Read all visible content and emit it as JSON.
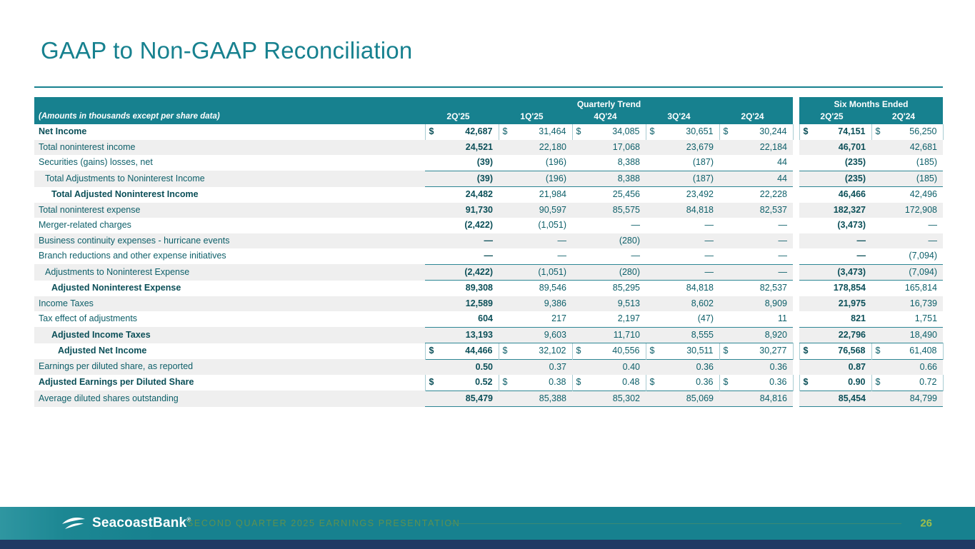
{
  "title": "GAAP to Non-GAAP Reconciliation",
  "colors": {
    "teal_header": "#17818F",
    "body_text": "#0D5F69",
    "bold_text": "#0B4F58",
    "stripe": "#EFEFEF",
    "footer_bar": "#17818F",
    "bottom_strip": "#203A64",
    "page_number": "#9DBE4C"
  },
  "table": {
    "row_label_header": "(Amounts in thousands except per share data)",
    "group_headers": [
      {
        "label": "Quarterly Trend",
        "span": 5
      },
      {
        "label": "Six Months Ended",
        "span": 2
      }
    ],
    "columns": [
      "2Q'25",
      "1Q'25",
      "4Q'24",
      "3Q'24",
      "2Q'24",
      "2Q'25",
      "2Q'24"
    ],
    "rows": [
      {
        "label": "Net Income",
        "indent": 0,
        "bold_label": true,
        "dollar": true,
        "topline": false,
        "bottomline": false,
        "values": [
          "42,687",
          "31,464",
          "34,085",
          "30,651",
          "30,244",
          "74,151",
          "56,250"
        ]
      },
      {
        "label": "Total noninterest income",
        "indent": 0,
        "bold_label": false,
        "dollar": false,
        "topline": false,
        "bottomline": false,
        "values": [
          "24,521",
          "22,180",
          "17,068",
          "23,679",
          "22,184",
          "46,701",
          "42,681"
        ]
      },
      {
        "label": "Securities (gains) losses, net",
        "indent": 0,
        "bold_label": false,
        "dollar": false,
        "topline": false,
        "bottomline": false,
        "values": [
          "(39)",
          "(196)",
          "8,388",
          "(187)",
          "44",
          "(235)",
          "(185)"
        ]
      },
      {
        "label": "Total Adjustments to Noninterest Income",
        "indent": 1,
        "bold_label": false,
        "dollar": false,
        "topline": true,
        "bottomline": false,
        "values": [
          "(39)",
          "(196)",
          "8,388",
          "(187)",
          "44",
          "(235)",
          "(185)"
        ]
      },
      {
        "label": "Total Adjusted Noninterest Income",
        "indent": 2,
        "bold_label": true,
        "dollar": false,
        "topline": true,
        "bottomline": false,
        "values": [
          "24,482",
          "21,984",
          "25,456",
          "23,492",
          "22,228",
          "46,466",
          "42,496"
        ]
      },
      {
        "label": "Total noninterest expense",
        "indent": 0,
        "bold_label": false,
        "dollar": false,
        "topline": false,
        "bottomline": false,
        "values": [
          "91,730",
          "90,597",
          "85,575",
          "84,818",
          "82,537",
          "182,327",
          "172,908"
        ]
      },
      {
        "label": "Merger-related charges",
        "indent": 0,
        "bold_label": false,
        "dollar": false,
        "topline": false,
        "bottomline": false,
        "values": [
          "(2,422)",
          "(1,051)",
          "—",
          "—",
          "—",
          "(3,473)",
          "—"
        ]
      },
      {
        "label": "Business continuity expenses - hurricane events",
        "indent": 0,
        "bold_label": false,
        "dollar": false,
        "topline": false,
        "bottomline": false,
        "values": [
          "—",
          "—",
          "(280)",
          "—",
          "—",
          "—",
          "—"
        ]
      },
      {
        "label": "Branch reductions and other expense initiatives",
        "indent": 0,
        "bold_label": false,
        "dollar": false,
        "topline": false,
        "bottomline": false,
        "values": [
          "—",
          "—",
          "—",
          "—",
          "—",
          "—",
          "(7,094)"
        ]
      },
      {
        "label": "Adjustments to Noninterest Expense",
        "indent": 1,
        "bold_label": false,
        "dollar": false,
        "topline": true,
        "bottomline": false,
        "values": [
          "(2,422)",
          "(1,051)",
          "(280)",
          "—",
          "—",
          "(3,473)",
          "(7,094)"
        ]
      },
      {
        "label": "Adjusted Noninterest Expense",
        "indent": 2,
        "bold_label": true,
        "dollar": false,
        "topline": true,
        "bottomline": false,
        "values": [
          "89,308",
          "89,546",
          "85,295",
          "84,818",
          "82,537",
          "178,854",
          "165,814"
        ]
      },
      {
        "label": "Income Taxes",
        "indent": 0,
        "bold_label": false,
        "dollar": false,
        "topline": false,
        "bottomline": false,
        "values": [
          "12,589",
          "9,386",
          "9,513",
          "8,602",
          "8,909",
          "21,975",
          "16,739"
        ]
      },
      {
        "label": "Tax effect of adjustments",
        "indent": 0,
        "bold_label": false,
        "dollar": false,
        "topline": false,
        "bottomline": false,
        "values": [
          "604",
          "217",
          "2,197",
          "(47)",
          "11",
          "821",
          "1,751"
        ]
      },
      {
        "label": "Adjusted Income Taxes",
        "indent": 2,
        "bold_label": true,
        "dollar": false,
        "topline": true,
        "bottomline": false,
        "values": [
          "13,193",
          "9,603",
          "11,710",
          "8,555",
          "8,920",
          "22,796",
          "18,490"
        ]
      },
      {
        "label": "Adjusted Net Income",
        "indent": 3,
        "bold_label": true,
        "dollar": true,
        "topline": true,
        "bottomline": false,
        "values": [
          "44,466",
          "32,102",
          "40,556",
          "30,511",
          "30,277",
          "76,568",
          "61,408"
        ]
      },
      {
        "label": "Earnings per diluted share, as reported",
        "indent": 0,
        "bold_label": false,
        "dollar": false,
        "topline": true,
        "bottomline": false,
        "values": [
          "0.50",
          "0.37",
          "0.40",
          "0.36",
          "0.36",
          "0.87",
          "0.66"
        ]
      },
      {
        "label": "Adjusted Earnings per Diluted Share",
        "indent": 0,
        "bold_label": true,
        "dollar": true,
        "topline": false,
        "bottomline": false,
        "values": [
          "0.52",
          "0.38",
          "0.48",
          "0.36",
          "0.36",
          "0.90",
          "0.72"
        ]
      },
      {
        "label": "Average diluted shares outstanding",
        "indent": 0,
        "bold_label": false,
        "dollar": false,
        "topline": true,
        "bottomline": true,
        "values": [
          "85,479",
          "85,388",
          "85,302",
          "85,069",
          "84,816",
          "85,454",
          "84,799"
        ]
      }
    ]
  },
  "footer": {
    "logo_text": "SeacoastBank",
    "logo_reg": "®",
    "presentation_title": "SECOND QUARTER 2025 EARNINGS PRESENTATION",
    "page_number": "26"
  }
}
